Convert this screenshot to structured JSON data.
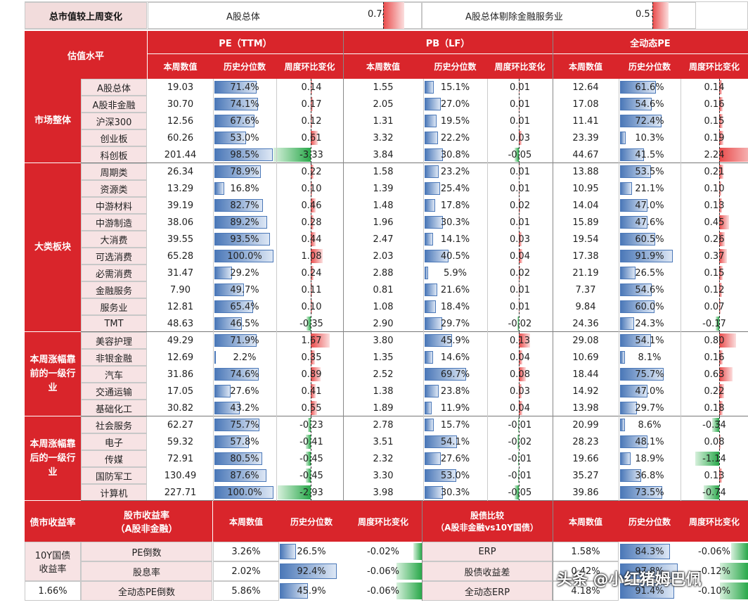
{
  "top": {
    "label": "总市值较上周变化",
    "items": [
      {
        "name": "A股总体",
        "value": "0.74%",
        "frac": 0.74
      },
      {
        "name": "A股总体剔除金融服务业",
        "value": "0.57%",
        "frac": 0.57
      }
    ]
  },
  "header": {
    "valuation": "估值水平",
    "groups": [
      "PE（TTM）",
      "PB（LF）",
      "全动态PE"
    ],
    "sub": [
      "本周数值",
      "历史分位数",
      "周度环比变化"
    ]
  },
  "sections": [
    {
      "name": "市场整体",
      "rows": [
        {
          "name": "A股总体",
          "pe": [
            "19.03",
            "71.4%",
            "0.14"
          ],
          "pb": [
            "1.55",
            "15.1%",
            "0.01"
          ],
          "dpe": [
            "12.64",
            "61.6%",
            "0.14"
          ]
        },
        {
          "name": "A股非金融",
          "pe": [
            "30.70",
            "74.1%",
            "0.17"
          ],
          "pb": [
            "2.05",
            "27.0%",
            "0.01"
          ],
          "dpe": [
            "17.08",
            "54.6%",
            "0.16"
          ]
        },
        {
          "name": "沪深300",
          "pe": [
            "12.56",
            "67.6%",
            "0.12"
          ],
          "pb": [
            "1.31",
            "19.5%",
            "0.01"
          ],
          "dpe": [
            "11.41",
            "72.4%",
            "0.15"
          ]
        },
        {
          "name": "创业板",
          "pe": [
            "60.26",
            "53.0%",
            "0.61"
          ],
          "pb": [
            "3.32",
            "22.2%",
            "0.03"
          ],
          "dpe": [
            "23.39",
            "10.3%",
            "0.19"
          ]
        },
        {
          "name": "科创板",
          "pe": [
            "201.44",
            "98.5%",
            "-3.33"
          ],
          "pb": [
            "3.84",
            "30.8%",
            "-0.05"
          ],
          "dpe": [
            "44.67",
            "41.5%",
            "2.24"
          ]
        }
      ]
    },
    {
      "name": "大类板块",
      "rows": [
        {
          "name": "周期类",
          "pe": [
            "26.34",
            "78.9%",
            "0.22"
          ],
          "pb": [
            "1.58",
            "23.2%",
            "0.01"
          ],
          "dpe": [
            "13.88",
            "53.5%",
            "0.21"
          ]
        },
        {
          "name": "资源类",
          "pe": [
            "13.29",
            "16.8%",
            "0.10"
          ],
          "pb": [
            "1.39",
            "25.4%",
            "0.01"
          ],
          "dpe": [
            "10.95",
            "21.1%",
            "0.10"
          ]
        },
        {
          "name": "中游材料",
          "pe": [
            "39.19",
            "82.7%",
            "0.46"
          ],
          "pb": [
            "1.48",
            "17.8%",
            "0.02"
          ],
          "dpe": [
            "14.04",
            "47.0%",
            "0.13"
          ]
        },
        {
          "name": "中游制造",
          "pe": [
            "38.06",
            "89.2%",
            "0.28"
          ],
          "pb": [
            "1.96",
            "30.3%",
            "0.01"
          ],
          "dpe": [
            "15.89",
            "47.6%",
            "0.45"
          ]
        },
        {
          "name": "大消费",
          "pe": [
            "39.55",
            "93.5%",
            "0.44"
          ],
          "pb": [
            "2.47",
            "14.1%",
            "0.03"
          ],
          "dpe": [
            "19.54",
            "60.5%",
            "0.26"
          ]
        },
        {
          "name": "可选消费",
          "pe": [
            "65.28",
            "100.0%",
            "1.08"
          ],
          "pb": [
            "2.03",
            "40.5%",
            "0.04"
          ],
          "dpe": [
            "17.38",
            "91.9%",
            "0.37"
          ]
        },
        {
          "name": "必需消费",
          "pe": [
            "31.47",
            "29.2%",
            "0.24"
          ],
          "pb": [
            "2.88",
            "5.9%",
            "0.02"
          ],
          "dpe": [
            "21.19",
            "26.5%",
            "0.15"
          ]
        },
        {
          "name": "金融服务",
          "pe": [
            "7.90",
            "49.7%",
            "0.11"
          ],
          "pb": [
            "0.81",
            "21.6%",
            "0.01"
          ],
          "dpe": [
            "7.37",
            "54.6%",
            "0.12"
          ]
        },
        {
          "name": "服务业",
          "pe": [
            "12.81",
            "65.4%",
            "0.10"
          ],
          "pb": [
            "1.08",
            "18.4%",
            "0.01"
          ],
          "dpe": [
            "9.84",
            "60.0%",
            "0.07"
          ]
        },
        {
          "name": "TMT",
          "pe": [
            "48.63",
            "46.5%",
            "-0.35"
          ],
          "pb": [
            "2.90",
            "29.7%",
            "-0.02"
          ],
          "dpe": [
            "24.36",
            "24.3%",
            "-0.17"
          ]
        }
      ]
    },
    {
      "name": "本周涨幅靠前的一级行业",
      "rows": [
        {
          "name": "美容护理",
          "pe": [
            "49.29",
            "71.9%",
            "1.67"
          ],
          "pb": [
            "3.80",
            "45.9%",
            "0.13"
          ],
          "dpe": [
            "29.08",
            "54.1%",
            "0.80"
          ]
        },
        {
          "name": "非银金融",
          "pe": [
            "12.69",
            "2.2%",
            "0.35"
          ],
          "pb": [
            "1.35",
            "14.6%",
            "0.04"
          ],
          "dpe": [
            "10.69",
            "8.1%",
            "0.16"
          ]
        },
        {
          "name": "汽车",
          "pe": [
            "31.86",
            "74.6%",
            "0.89"
          ],
          "pb": [
            "2.52",
            "69.7%",
            "0.08"
          ],
          "dpe": [
            "18.44",
            "75.7%",
            "0.63"
          ]
        },
        {
          "name": "交通运输",
          "pe": [
            "17.05",
            "27.6%",
            "0.41"
          ],
          "pb": [
            "1.38",
            "23.8%",
            "0.03"
          ],
          "dpe": [
            "14.92",
            "47.0%",
            "0.22"
          ]
        },
        {
          "name": "基础化工",
          "pe": [
            "30.82",
            "43.2%",
            "0.55"
          ],
          "pb": [
            "1.89",
            "11.9%",
            "0.04"
          ],
          "dpe": [
            "13.98",
            "29.7%",
            "0.18"
          ]
        }
      ]
    },
    {
      "name": "本周涨幅靠后的一级行业",
      "rows": [
        {
          "name": "社会服务",
          "pe": [
            "62.27",
            "75.7%",
            "-0.23"
          ],
          "pb": [
            "2.78",
            "15.7%",
            "-0.01"
          ],
          "dpe": [
            "20.99",
            "8.6%",
            "-0.34"
          ]
        },
        {
          "name": "电子",
          "pe": [
            "59.32",
            "57.8%",
            "-0.41"
          ],
          "pb": [
            "3.51",
            "54.1%",
            "-0.02"
          ],
          "dpe": [
            "28.23",
            "48.1%",
            "0.08"
          ]
        },
        {
          "name": "传媒",
          "pe": [
            "72.91",
            "80.5%",
            "-0.45"
          ],
          "pb": [
            "2.32",
            "27.6%",
            "-0.01"
          ],
          "dpe": [
            "19.66",
            "18.9%",
            "-1.14"
          ]
        },
        {
          "name": "国防军工",
          "pe": [
            "130.49",
            "87.6%",
            "-0.45"
          ],
          "pb": [
            "3.30",
            "53.0%",
            "-0.01"
          ],
          "dpe": [
            "35.27",
            "36.8%",
            "0.13"
          ]
        },
        {
          "name": "计算机",
          "pe": [
            "227.71",
            "100.0%",
            "-2.93"
          ],
          "pb": [
            "3.98",
            "30.3%",
            "-0.05"
          ],
          "dpe": [
            "39.86",
            "73.5%",
            "-0.74"
          ]
        }
      ]
    }
  ],
  "bottom": {
    "bond_label": "债市收益率",
    "stock_label1": "股市收益率",
    "stock_label2": "（A股非金融）",
    "sub": [
      "本周数值",
      "历史分位数",
      "周度环比变化"
    ],
    "cmp_label1": "股债比较",
    "cmp_label2": "（A股非金融vs10Y国债）",
    "bond_name1": "10Y国债",
    "bond_name2": "收益率",
    "bond_value": "1.66%",
    "rows": [
      {
        "name": "PE倒数",
        "v": [
          "3.26%",
          "26.5%",
          "-0.02%"
        ],
        "cname": "ERP",
        "c": [
          "1.58%",
          "84.3%",
          "-0.06%"
        ]
      },
      {
        "name": "股息率",
        "v": [
          "2.02%",
          "92.4%",
          "-0.06%"
        ],
        "cname": "股债收益差",
        "c": [
          "0.42%",
          "97.8%",
          "-0.12%"
        ]
      },
      {
        "name": "全动态PE倒数",
        "v": [
          "5.86%",
          "45.9%",
          "-0.06%"
        ],
        "cname": "全动态ERP",
        "c": [
          "4.18%",
          "91.4%",
          "-0.10%"
        ]
      }
    ]
  },
  "watermark": "头条 @小红猪姆巴佩"
}
